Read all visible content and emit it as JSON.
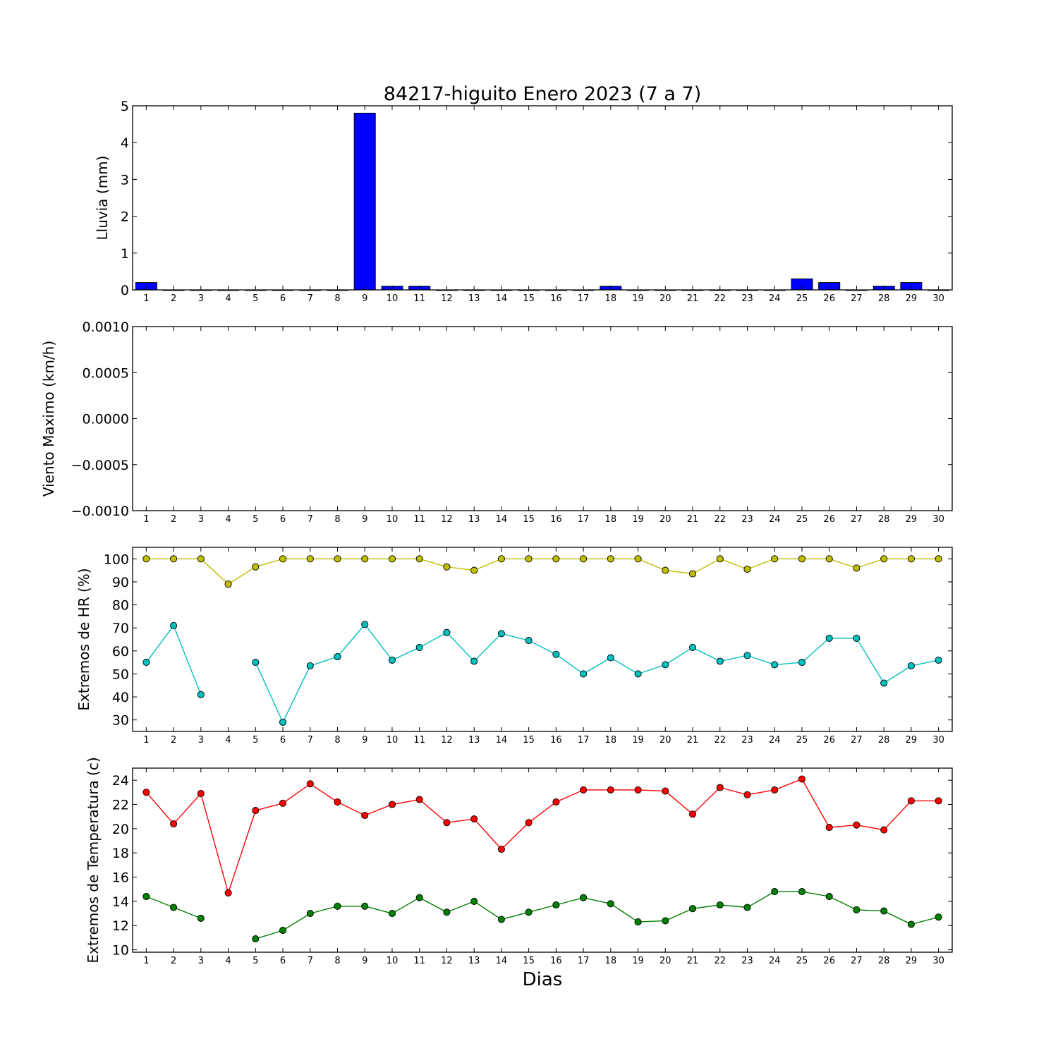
{
  "figure": {
    "title": "84217-higuito Enero 2023  (7 a 7)",
    "xlabel": "Dias"
  },
  "chart_data": [
    {
      "type": "bar",
      "ylabel": "Lluvia (mm)",
      "ylim": [
        0,
        5
      ],
      "yticks": [
        0,
        1,
        2,
        3,
        4,
        5
      ],
      "ytick_labels": [
        "0",
        "1",
        "2",
        "3",
        "4",
        "5"
      ],
      "x": [
        1,
        2,
        3,
        4,
        5,
        6,
        7,
        8,
        9,
        10,
        11,
        12,
        13,
        14,
        15,
        16,
        17,
        18,
        19,
        20,
        21,
        22,
        23,
        24,
        25,
        26,
        27,
        28,
        29,
        30
      ],
      "series": [
        {
          "color": "#0000ff",
          "values": [
            0.2,
            0,
            0,
            0,
            0,
            0,
            0,
            0,
            4.8,
            0.1,
            0.1,
            0,
            0,
            0,
            0,
            0,
            0,
            0.1,
            0,
            0,
            0,
            0,
            0,
            0,
            0.3,
            0.2,
            0,
            0.1,
            0.2,
            0
          ]
        }
      ]
    },
    {
      "type": "line",
      "ylabel": "Viento Maximo (km/h)",
      "ylim": [
        -0.001,
        0.001
      ],
      "yticks": [
        -0.001,
        -0.0005,
        0,
        0.0005,
        0.001
      ],
      "ytick_labels": [
        "−0.0010",
        "−0.0005",
        "0.0000",
        "0.0005",
        "0.0010"
      ],
      "x": [
        1,
        2,
        3,
        4,
        5,
        6,
        7,
        8,
        9,
        10,
        11,
        12,
        13,
        14,
        15,
        16,
        17,
        18,
        19,
        20,
        21,
        22,
        23,
        24,
        25,
        26,
        27,
        28,
        29,
        30
      ],
      "series": []
    },
    {
      "type": "line",
      "ylabel": "Extremos de HR (%)",
      "ylim": [
        25,
        105
      ],
      "yticks": [
        30,
        40,
        50,
        60,
        70,
        80,
        90,
        100
      ],
      "ytick_labels": [
        "30",
        "40",
        "50",
        "60",
        "70",
        "80",
        "90",
        "100"
      ],
      "x": [
        1,
        2,
        3,
        4,
        5,
        6,
        7,
        8,
        9,
        10,
        11,
        12,
        13,
        14,
        15,
        16,
        17,
        18,
        19,
        20,
        21,
        22,
        23,
        24,
        25,
        26,
        27,
        28,
        29,
        30
      ],
      "series": [
        {
          "color": "#bfbf00",
          "values": [
            100,
            100,
            100,
            89,
            96.5,
            100,
            100,
            100,
            100,
            100,
            100,
            96.5,
            95,
            100,
            100,
            100,
            100,
            100,
            100,
            95,
            93.5,
            100,
            95.5,
            100,
            100,
            100,
            96,
            100,
            100,
            100
          ]
        },
        {
          "color": "#00bfbf",
          "values": [
            55,
            71,
            41,
            null,
            55,
            29,
            53.5,
            57.5,
            71.5,
            56,
            61.5,
            68,
            55.5,
            67.5,
            64.5,
            58.5,
            50,
            57,
            50,
            54,
            61.5,
            55.5,
            58,
            54,
            55,
            65.5,
            65.5,
            46,
            53.5,
            56
          ]
        }
      ]
    },
    {
      "type": "line",
      "ylabel": "Extremos de Temperatura (c)",
      "ylim": [
        9.8,
        25
      ],
      "yticks": [
        10,
        12,
        14,
        16,
        18,
        20,
        22,
        24
      ],
      "ytick_labels": [
        "10",
        "12",
        "14",
        "16",
        "18",
        "20",
        "22",
        "24"
      ],
      "x": [
        1,
        2,
        3,
        4,
        5,
        6,
        7,
        8,
        9,
        10,
        11,
        12,
        13,
        14,
        15,
        16,
        17,
        18,
        19,
        20,
        21,
        22,
        23,
        24,
        25,
        26,
        27,
        28,
        29,
        30
      ],
      "series": [
        {
          "color": "#ff0000",
          "values": [
            23,
            20.4,
            22.9,
            14.7,
            21.5,
            22.1,
            23.7,
            22.2,
            21.1,
            22,
            22.4,
            20.5,
            20.8,
            18.3,
            20.5,
            22.2,
            23.2,
            23.2,
            23.2,
            23.1,
            21.2,
            23.4,
            22.8,
            23.2,
            24.1,
            20.1,
            20.3,
            19.9,
            22.3,
            22.3
          ]
        },
        {
          "color": "#008000",
          "values": [
            14.4,
            13.5,
            12.6,
            null,
            10.9,
            11.6,
            13,
            13.6,
            13.6,
            13,
            14.3,
            13.1,
            14,
            12.5,
            13.1,
            13.7,
            14.3,
            13.8,
            12.3,
            12.4,
            13.4,
            13.7,
            13.5,
            14.8,
            14.8,
            14.4,
            13.3,
            13.2,
            12.1,
            12.7
          ]
        }
      ]
    }
  ]
}
